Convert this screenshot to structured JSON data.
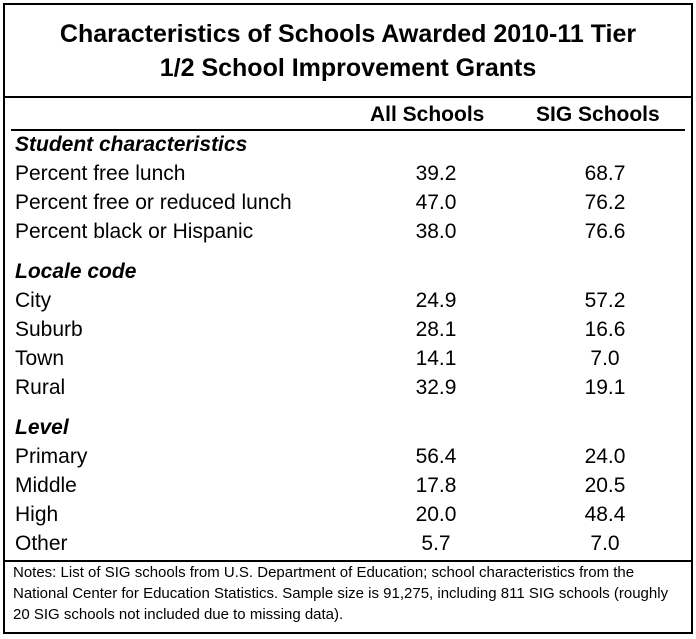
{
  "title": {
    "line1": "Characteristics of Schools Awarded 2010-11 Tier",
    "line2": "1/2 School Improvement Grants"
  },
  "columns": {
    "all": "All Schools",
    "sig": "SIG Schools"
  },
  "sections": {
    "student": {
      "title": "Student characteristics",
      "rows": [
        {
          "label": "Percent free lunch",
          "all": "39.2",
          "sig": "68.7"
        },
        {
          "label": "Percent free or reduced lunch",
          "all": "47.0",
          "sig": "76.2"
        },
        {
          "label": "Percent black or Hispanic",
          "all": "38.0",
          "sig": "76.6"
        }
      ]
    },
    "locale": {
      "title": "Locale code",
      "rows": [
        {
          "label": "City",
          "all": "24.9",
          "sig": "57.2"
        },
        {
          "label": "Suburb",
          "all": "28.1",
          "sig": "16.6"
        },
        {
          "label": "Town",
          "all": "14.1",
          "sig": "7.0"
        },
        {
          "label": "Rural",
          "all": "32.9",
          "sig": "19.1"
        }
      ]
    },
    "level": {
      "title": "Level",
      "rows": [
        {
          "label": "Primary",
          "all": "56.4",
          "sig": "24.0"
        },
        {
          "label": "Middle",
          "all": "17.8",
          "sig": "20.5"
        },
        {
          "label": "High",
          "all": "20.0",
          "sig": "48.4"
        },
        {
          "label": "Other",
          "all": "5.7",
          "sig": "7.0"
        }
      ]
    }
  },
  "notes": "Notes: List of SIG schools from U.S. Department of Education; school characteristics from the National Center for Education Statistics. Sample size is 91,275, including 811 SIG schools (roughly 20 SIG schools not included due to missing data)."
}
